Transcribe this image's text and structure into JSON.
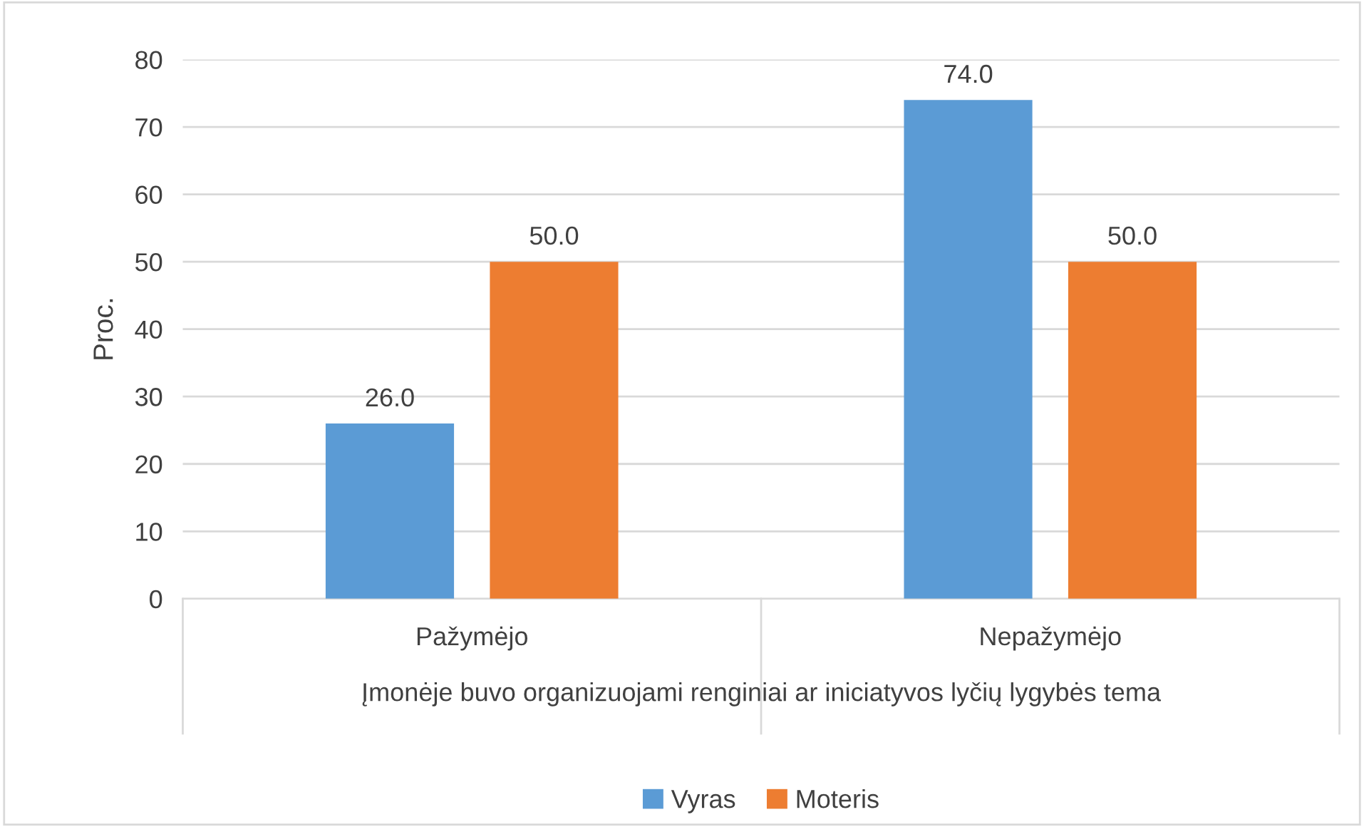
{
  "chart_data": {
    "type": "bar",
    "xlabel": "Įmonėje buvo organizuojami renginiai ar iniciatyvos lyčių lygybės tema",
    "ylabel": "Proc.",
    "categories": [
      "Pažymėjo",
      "Nepažymėjo"
    ],
    "series": [
      {
        "name": "Vyras",
        "color": "#5b9bd5",
        "values": [
          26.0,
          74.0
        ],
        "value_labels": [
          "26.0",
          "74.0"
        ]
      },
      {
        "name": "Moteris",
        "color": "#ed7d31",
        "values": [
          50.0,
          50.0
        ],
        "value_labels": [
          "50.0",
          "50.0"
        ]
      }
    ],
    "ylim": [
      0,
      80
    ],
    "yticks": [
      0,
      10,
      20,
      30,
      40,
      50,
      60,
      70,
      80
    ],
    "grid": "y",
    "legend": "bottom"
  }
}
